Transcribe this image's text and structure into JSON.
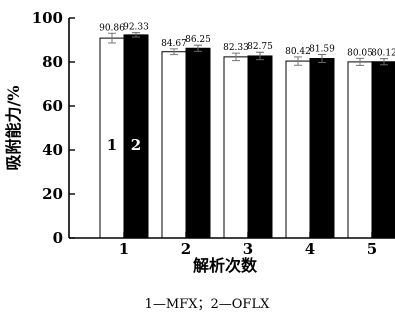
{
  "chart_data": {
    "type": "bar",
    "categories": [
      "1",
      "2",
      "3",
      "4",
      "5"
    ],
    "series": [
      {
        "name": "1",
        "values": [
          90.86,
          84.67,
          82.33,
          80.42,
          80.05
        ],
        "color": "#ffffff",
        "stroke": "#000000"
      },
      {
        "name": "2",
        "values": [
          92.33,
          86.25,
          82.75,
          81.59,
          80.12
        ],
        "color": "#000000",
        "stroke": "#000000"
      }
    ],
    "data_labels": [
      [
        "90.86",
        "84.67",
        "82.33",
        "80.42",
        "80.05"
      ],
      [
        "92.33",
        "86.25",
        "82.75",
        "81.59",
        "80.12"
      ]
    ],
    "error": [
      [
        2.2,
        1.3,
        1.7,
        1.9,
        1.6
      ],
      [
        1.0,
        1.4,
        1.7,
        1.8,
        1.4
      ]
    ],
    "title": "",
    "xlabel": "解析次数",
    "ylabel": "吸附能力/%",
    "ylim": [
      0,
      100
    ],
    "yticks": [
      "0",
      "20",
      "40",
      "60",
      "80",
      "100"
    ],
    "in_bar_labels": [
      "1",
      "2"
    ],
    "caption": "1—MFX；2—OFLX",
    "grid": false
  }
}
